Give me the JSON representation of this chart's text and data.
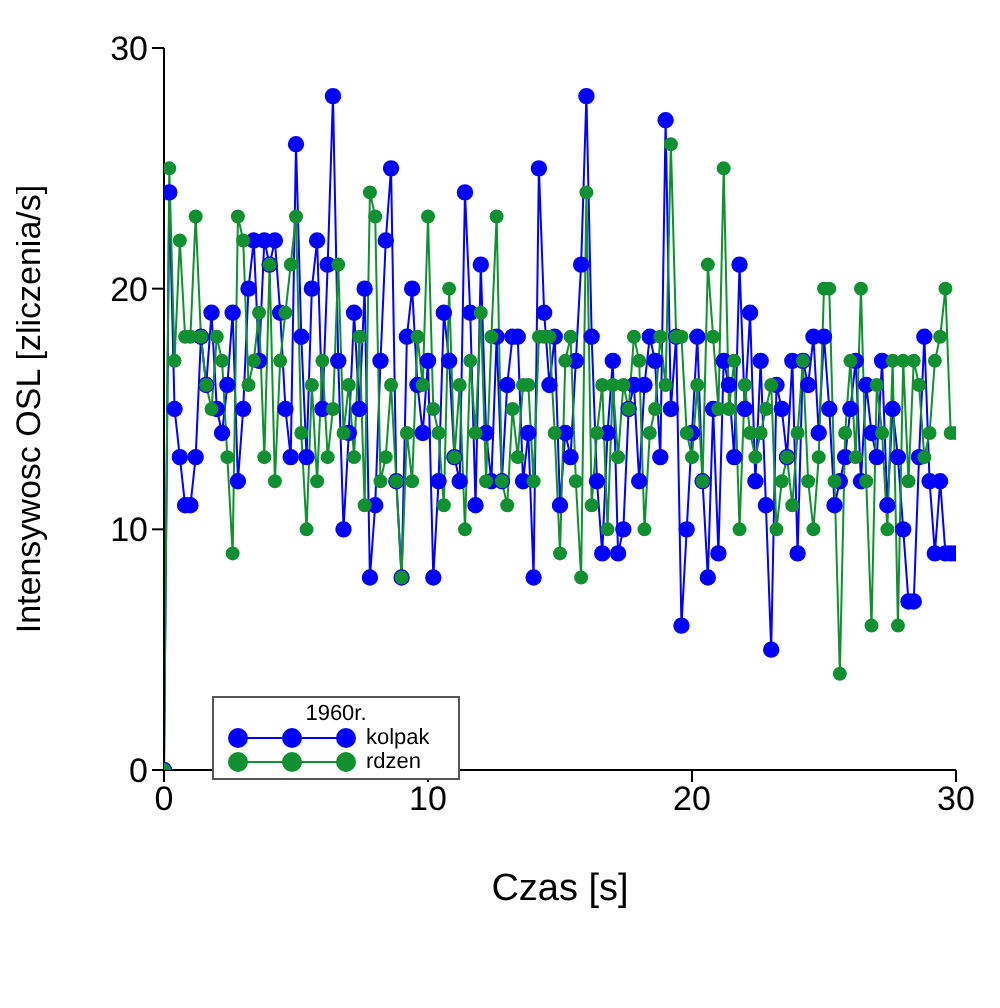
{
  "chart_data": {
    "type": "line",
    "xlabel": "Czas [s]",
    "ylabel": "Intensywosc OSL  [zliczenia/s]",
    "legend_title": "1960r.",
    "legend": "bottom left",
    "marker": "circle",
    "line_style": "solid",
    "xlim": [
      0,
      30
    ],
    "xticks": [
      0,
      10,
      20,
      30
    ],
    "ylim": [
      0,
      30
    ],
    "yticks": [
      0,
      10,
      20,
      30
    ],
    "x": [
      0,
      0.2,
      0.4,
      0.6,
      0.8,
      1,
      1.2,
      1.4,
      1.6,
      1.8,
      2,
      2.2,
      2.4,
      2.6,
      2.8,
      3,
      3.2,
      3.4,
      3.6,
      3.8,
      4,
      4.2,
      4.4,
      4.6,
      4.8,
      5,
      5.2,
      5.4,
      5.6,
      5.8,
      6,
      6.2,
      6.4,
      6.6,
      6.8,
      7,
      7.2,
      7.4,
      7.6,
      7.8,
      8,
      8.2,
      8.4,
      8.6,
      8.8,
      9,
      9.2,
      9.4,
      9.6,
      9.8,
      10,
      10.2,
      10.4,
      10.6,
      10.8,
      11,
      11.2,
      11.4,
      11.6,
      11.8,
      12,
      12.2,
      12.4,
      12.6,
      12.8,
      13,
      13.2,
      13.4,
      13.6,
      13.8,
      14,
      14.2,
      14.4,
      14.6,
      14.8,
      15,
      15.2,
      15.4,
      15.6,
      15.8,
      16,
      16.2,
      16.4,
      16.6,
      16.8,
      17,
      17.2,
      17.4,
      17.6,
      17.8,
      18,
      18.2,
      18.4,
      18.6,
      18.8,
      19,
      19.2,
      19.4,
      19.6,
      19.8,
      20,
      20.2,
      20.4,
      20.6,
      20.8,
      21,
      21.2,
      21.4,
      21.6,
      21.8,
      22,
      22.2,
      22.4,
      22.6,
      22.8,
      23,
      23.2,
      23.4,
      23.6,
      23.8,
      24,
      24.2,
      24.4,
      24.6,
      24.8,
      25,
      25.2,
      25.4,
      25.6,
      25.8,
      26,
      26.2,
      26.4,
      26.6,
      26.8,
      27,
      27.2,
      27.4,
      27.6,
      27.8,
      28,
      28.2,
      28.4,
      28.6,
      28.8,
      29,
      29.2,
      29.4,
      29.6,
      29.8,
      30
    ],
    "series": [
      {
        "name": "kolpak",
        "color": "#0000ff",
        "values": [
          0,
          24,
          15,
          13,
          11,
          11,
          13,
          18,
          16,
          19,
          15,
          14,
          16,
          19,
          12,
          15,
          20,
          22,
          17,
          22,
          21,
          22,
          19,
          15,
          13,
          26,
          18,
          13,
          20,
          22,
          15,
          21,
          28,
          17,
          10,
          14,
          19,
          15,
          20,
          8,
          11,
          17,
          22,
          25,
          12,
          8,
          18,
          20,
          16,
          14,
          17,
          8,
          12,
          19,
          17,
          13,
          12,
          24,
          19,
          11,
          21,
          14,
          12,
          18,
          12,
          16,
          18,
          18,
          12,
          14,
          8,
          25,
          19,
          16,
          18,
          11,
          14,
          13,
          17,
          21,
          28,
          18,
          12,
          9,
          14,
          17,
          9,
          10,
          15,
          16,
          12,
          16,
          18,
          17,
          13,
          27,
          15,
          18,
          6,
          10,
          14,
          18,
          12,
          8,
          15,
          9,
          17,
          16,
          13,
          21,
          15,
          19,
          12,
          17,
          11,
          5,
          16,
          15,
          13,
          17,
          9,
          17,
          16,
          18,
          14,
          18,
          15,
          11,
          12,
          13,
          15,
          17,
          12,
          16,
          14,
          13,
          17,
          11,
          15,
          13,
          10,
          7,
          7,
          13,
          18,
          12,
          9,
          12,
          9,
          9,
          9
        ]
      },
      {
        "name": "rdzen",
        "color": "#109030",
        "values": [
          0,
          25,
          17,
          22,
          18,
          18,
          23,
          18,
          16,
          15,
          18,
          17,
          13,
          9,
          23,
          22,
          16,
          17,
          19,
          13,
          21,
          12,
          17,
          19,
          21,
          23,
          14,
          10,
          16,
          12,
          17,
          13,
          15,
          21,
          14,
          16,
          13,
          18,
          11,
          24,
          23,
          12,
          13,
          16,
          12,
          8,
          14,
          12,
          18,
          16,
          23,
          15,
          14,
          11,
          20,
          13,
          16,
          10,
          17,
          14,
          19,
          12,
          18,
          23,
          12,
          11,
          15,
          13,
          16,
          16,
          12,
          18,
          18,
          18,
          14,
          9,
          17,
          18,
          12,
          8,
          24,
          11,
          14,
          16,
          10,
          16,
          13,
          16,
          15,
          18,
          17,
          10,
          14,
          15,
          18,
          16,
          26,
          18,
          18,
          14,
          13,
          16,
          12,
          21,
          18,
          15,
          25,
          15,
          17,
          10,
          16,
          14,
          13,
          14,
          15,
          16,
          10,
          12,
          13,
          11,
          14,
          17,
          12,
          10,
          13,
          20,
          20,
          12,
          4,
          14,
          17,
          13,
          20,
          12,
          6,
          16,
          14,
          10,
          17,
          6,
          17,
          12,
          17,
          16,
          13,
          14,
          17,
          18,
          20,
          14,
          14
        ]
      }
    ]
  }
}
